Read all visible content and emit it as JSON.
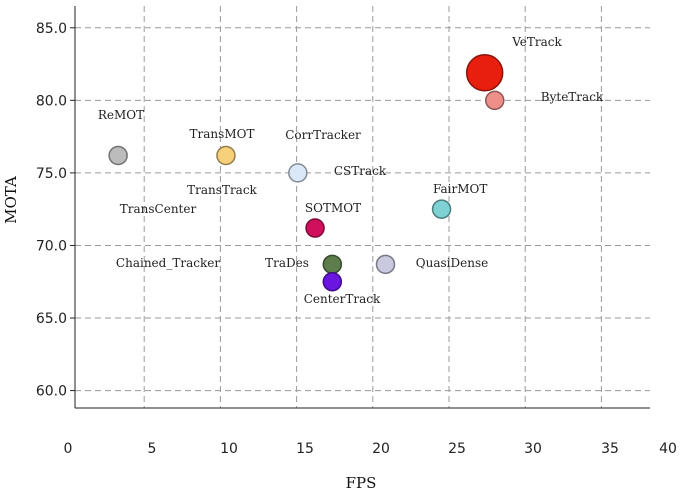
{
  "chart_data": {
    "type": "scatter",
    "xlabel": "FPS",
    "ylabel": "MOTA",
    "xlim": [
      0,
      40
    ],
    "ylim": [
      58.8,
      86.5
    ],
    "x_ticks": [
      "0",
      "5",
      "10",
      "15",
      "20",
      "25",
      "30",
      "35",
      "40"
    ],
    "y_ticks": [
      "60.0",
      "65.0",
      "70.0",
      "75.0",
      "80.0",
      "85.0"
    ],
    "grid": true,
    "points": [
      {
        "name": "VeTrack",
        "x": 28.5,
        "y": 81.9,
        "label": "VeTrack",
        "color": "#e81e0e",
        "size": "large"
      },
      {
        "name": "ByteTrack",
        "x": 29.2,
        "y": 80.0,
        "label": "ByteTrack",
        "color": "#ef8f8a",
        "size": "small"
      },
      {
        "name": "ReMOT",
        "x": 3.0,
        "y": 76.2,
        "label": "ReMOT",
        "color": "#bcbcbc",
        "size": "small"
      },
      {
        "name": "TransMOT",
        "x": 10.5,
        "y": 76.2,
        "label": "TransMOT",
        "color": "#f7d07a",
        "size": "small"
      },
      {
        "name": "CorrTracker",
        "x": null,
        "y": null,
        "label": "CorrTracker",
        "color": null,
        "size": null
      },
      {
        "name": "CSTrack",
        "x": 15.5,
        "y": 75.0,
        "label": "CSTrack",
        "color": "#dbe8f7",
        "size": "small"
      },
      {
        "name": "TransTrack",
        "x": null,
        "y": null,
        "label": "TransTrack",
        "color": null,
        "size": null
      },
      {
        "name": "TransCenter",
        "x": null,
        "y": null,
        "label": "TransCenter",
        "color": null,
        "size": null
      },
      {
        "name": "FairMOT",
        "x": 25.5,
        "y": 72.5,
        "label": "FairMOT",
        "color": "#7fd2d3",
        "size": "small"
      },
      {
        "name": "SOTMOT",
        "x": 16.7,
        "y": 71.2,
        "label": "SOTMOT",
        "color": "#d0105c",
        "size": "small"
      },
      {
        "name": "Chained_Tracker",
        "x": null,
        "y": null,
        "label": "Chained_Tracker",
        "color": null,
        "size": null
      },
      {
        "name": "TraDes",
        "x": 17.9,
        "y": 68.7,
        "label": "TraDes",
        "color": "#5e7d4c",
        "size": "small"
      },
      {
        "name": "QuasiDense",
        "x": 21.6,
        "y": 68.7,
        "label": "QuasiDense",
        "color": "#c9c9df",
        "size": "small"
      },
      {
        "name": "CenterTrack",
        "x": 17.9,
        "y": 67.5,
        "label": "CenterTrack",
        "color": "#6a16e0",
        "size": "small"
      }
    ]
  }
}
